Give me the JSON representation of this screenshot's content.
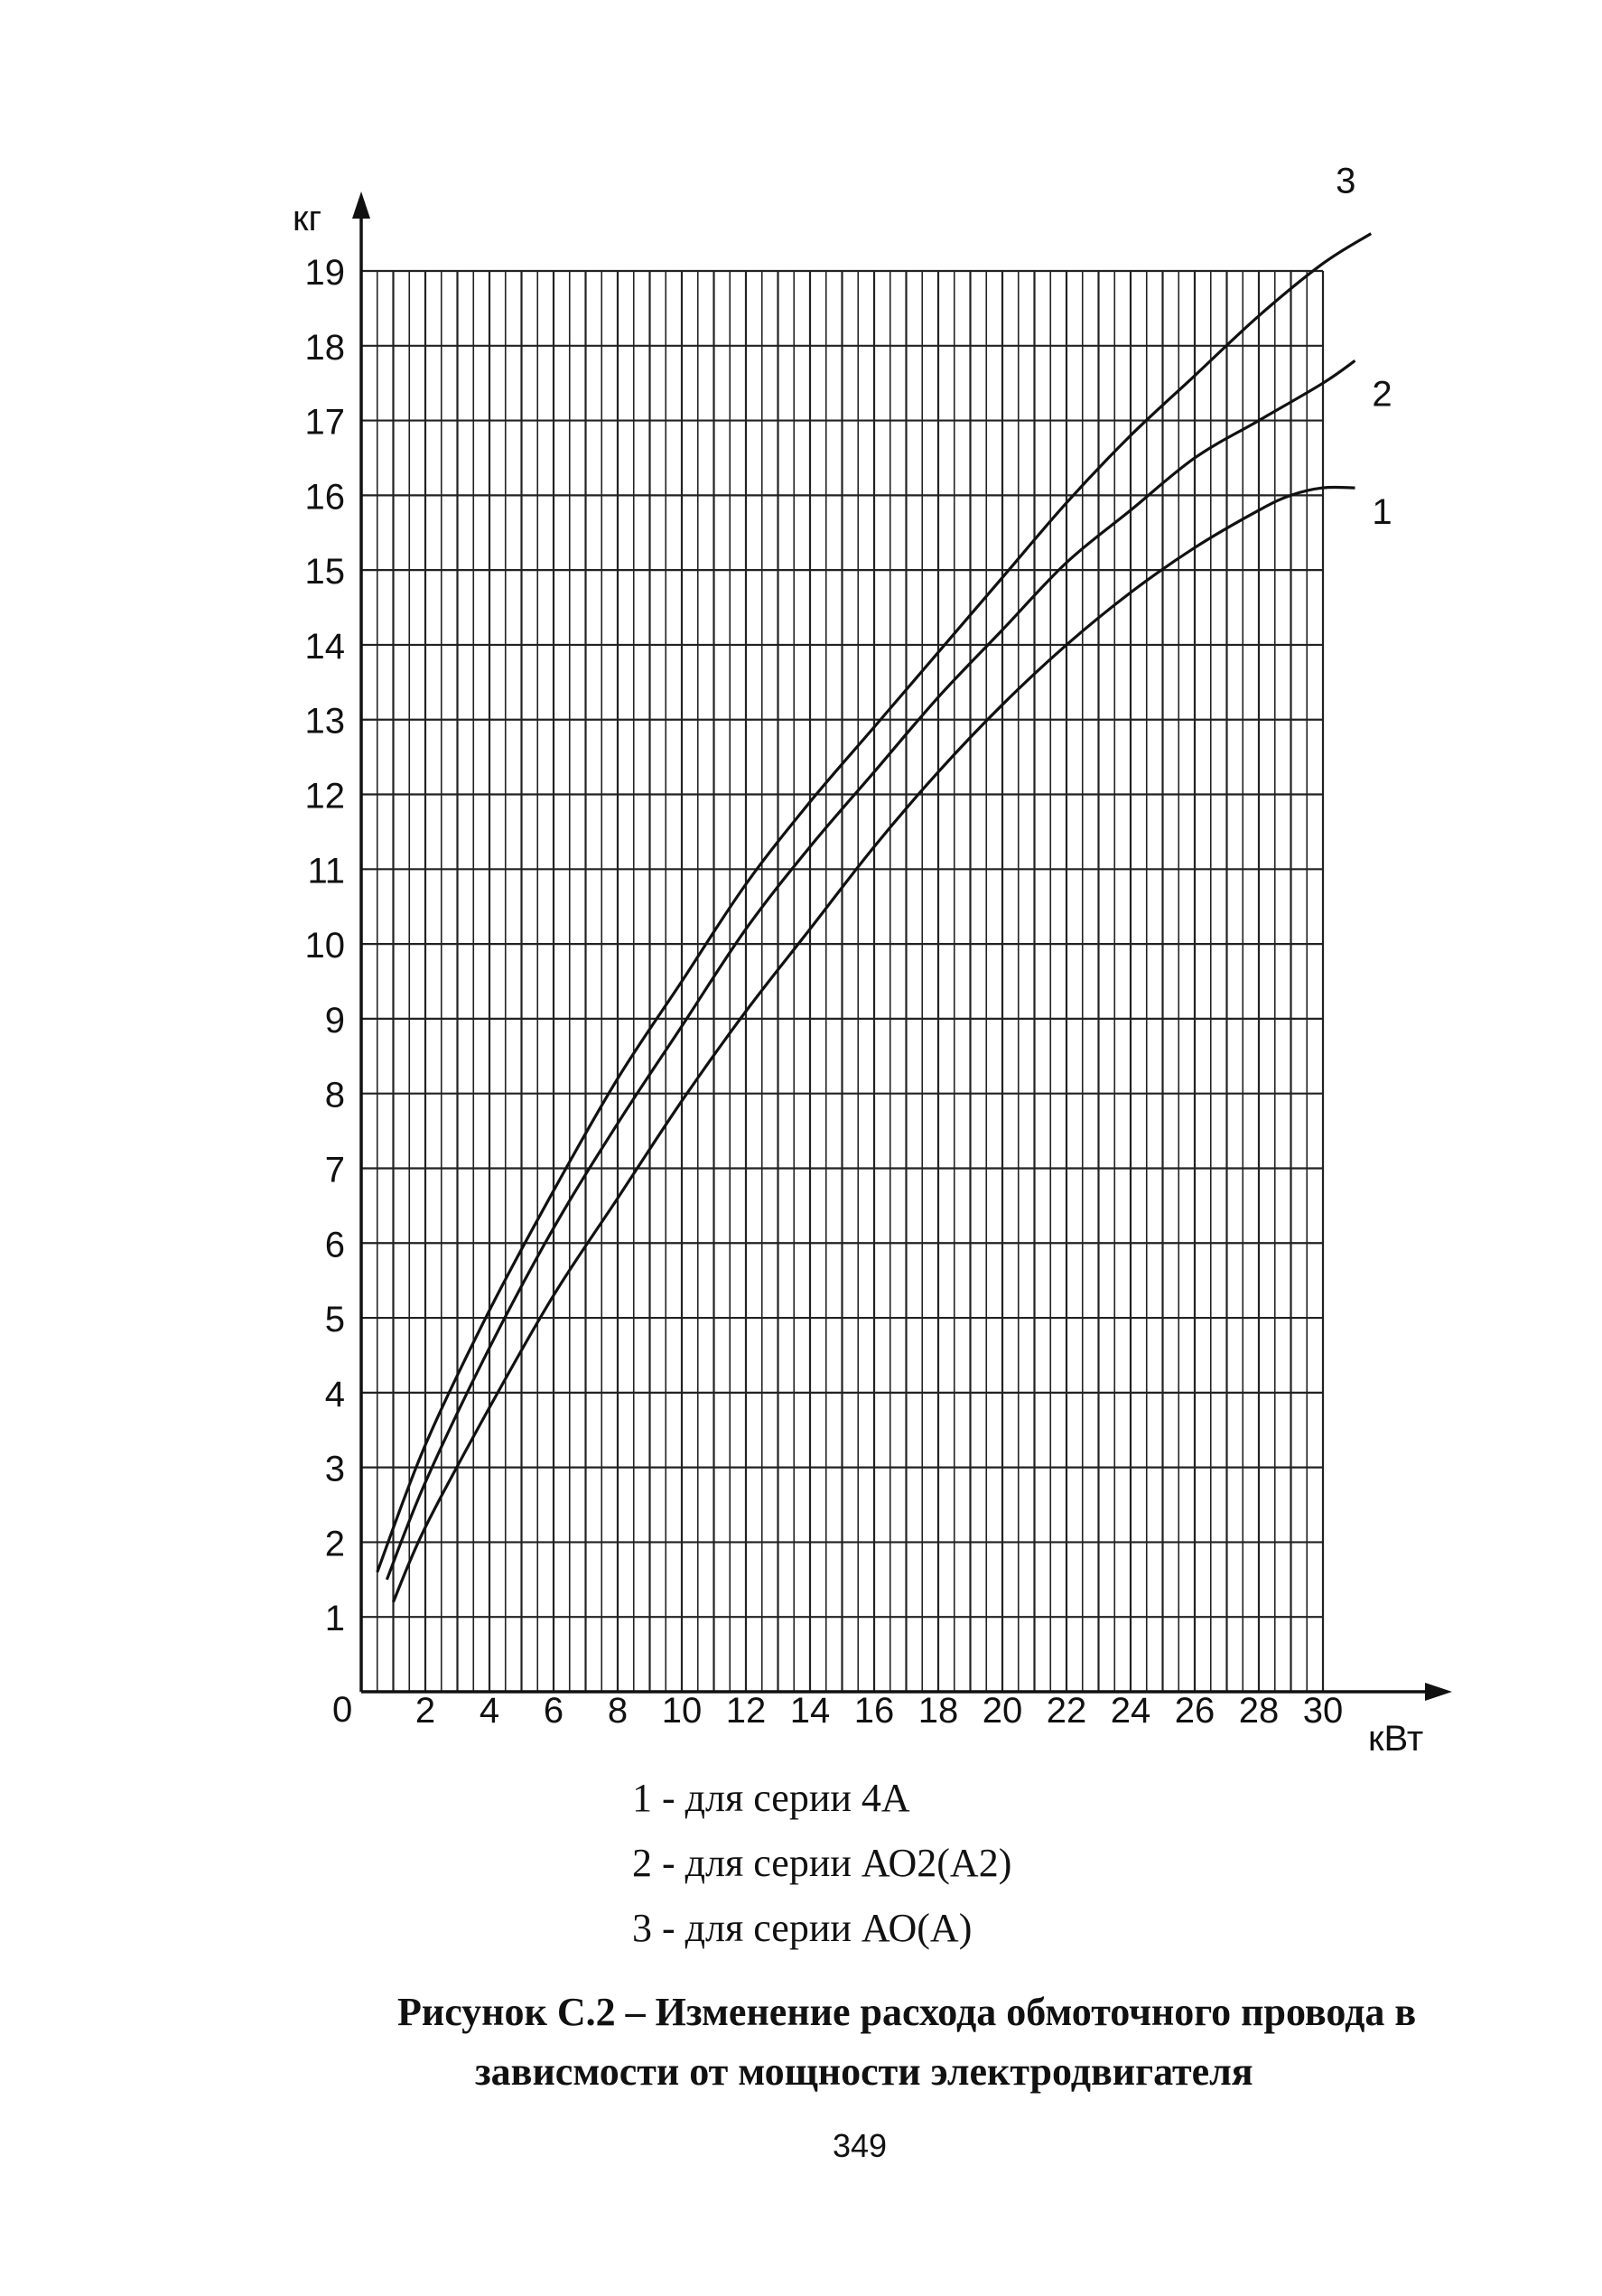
{
  "chart_data": {
    "type": "line",
    "ylabel": "кг",
    "xlabel": "кВт",
    "origin_label": "0",
    "xlim": [
      0,
      30
    ],
    "ylim": [
      0,
      19
    ],
    "x_tick_labels": [
      "2",
      "4",
      "6",
      "8",
      "10",
      "12",
      "14",
      "16",
      "18",
      "20",
      "22",
      "24",
      "26",
      "28",
      "30"
    ],
    "y_tick_labels": [
      "1",
      "2",
      "3",
      "4",
      "5",
      "6",
      "7",
      "8",
      "9",
      "10",
      "11",
      "12",
      "13",
      "14",
      "15",
      "16",
      "17",
      "18",
      "19"
    ],
    "grid": true,
    "series": [
      {
        "name": "1",
        "x": [
          1,
          2,
          4,
          6,
          8,
          10,
          12,
          14,
          16,
          18,
          20,
          22,
          24,
          26,
          28,
          29,
          30,
          31
        ],
        "y": [
          1.2,
          2.2,
          3.8,
          5.3,
          6.6,
          7.9,
          9.1,
          10.2,
          11.3,
          12.3,
          13.2,
          14.0,
          14.7,
          15.3,
          15.8,
          16.0,
          16.1,
          16.1
        ]
      },
      {
        "name": "2",
        "x": [
          0.8,
          2,
          4,
          6,
          8,
          10,
          12,
          14,
          16,
          18,
          20,
          22,
          24,
          26,
          28,
          30,
          31
        ],
        "y": [
          1.5,
          2.8,
          4.6,
          6.2,
          7.6,
          8.9,
          10.2,
          11.3,
          12.3,
          13.3,
          14.2,
          15.1,
          15.8,
          16.5,
          17.0,
          17.5,
          17.8
        ]
      },
      {
        "name": "3",
        "x": [
          0.5,
          2,
          4,
          6,
          8,
          10,
          12,
          14,
          16,
          18,
          20,
          22,
          24,
          26,
          28,
          30,
          31.5
        ],
        "y": [
          1.6,
          3.3,
          5.1,
          6.7,
          8.2,
          9.5,
          10.8,
          11.9,
          12.9,
          13.9,
          14.9,
          15.9,
          16.8,
          17.6,
          18.4,
          19.1,
          19.5
        ]
      }
    ]
  },
  "legend": [
    "1 - для серии 4А",
    "2 - для серии АО2(А2)",
    "3 - для серии АО(А)"
  ],
  "caption": {
    "line1": "Рисунок С.2 – Изменение расхода обмоточного провода в",
    "line2": "зависмости от мощности электродвигателя"
  },
  "page_number": "349"
}
